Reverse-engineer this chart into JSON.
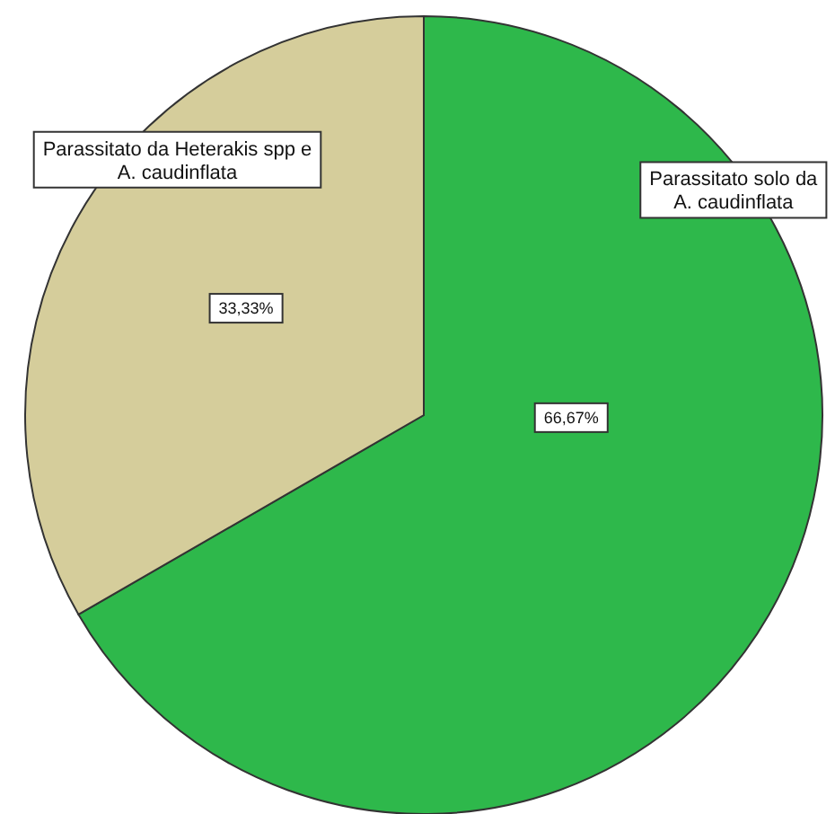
{
  "chart_data": {
    "type": "pie",
    "categories": [
      "Parassitato solo da A. caudinflata",
      "Parassitato da Heterakis spp e A. caudinflata"
    ],
    "values": [
      66.67,
      33.33
    ],
    "colors": [
      "#2eb84b",
      "#d5cd9b"
    ],
    "value_labels": [
      "66,67%",
      "33,33%"
    ]
  }
}
